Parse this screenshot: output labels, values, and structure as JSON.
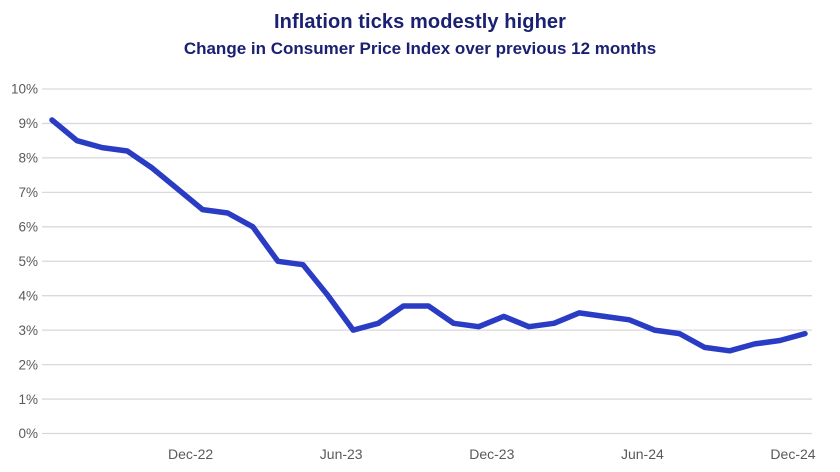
{
  "header": {
    "title": "Inflation ticks modestly higher",
    "subtitle": "Change in Consumer Price Index over previous 12 months"
  },
  "colors": {
    "title_text": "#1a2172",
    "line": "#2b3cc4",
    "grid": "#d9d9d9",
    "axis_text": "#5a5a5a",
    "background": "#ffffff"
  },
  "chart_data": {
    "type": "line",
    "title": "Inflation ticks modestly higher",
    "subtitle": "Change in Consumer Price Index over previous 12 months",
    "x": [
      "Jun-22",
      "Jul-22",
      "Aug-22",
      "Sep-22",
      "Oct-22",
      "Nov-22",
      "Dec-22",
      "Jan-23",
      "Feb-23",
      "Mar-23",
      "Apr-23",
      "May-23",
      "Jun-23",
      "Jul-23",
      "Aug-23",
      "Sep-23",
      "Oct-23",
      "Nov-23",
      "Dec-23",
      "Jan-24",
      "Feb-24",
      "Mar-24",
      "Apr-24",
      "May-24",
      "Jun-24",
      "Jul-24",
      "Aug-24",
      "Sep-24",
      "Oct-24",
      "Nov-24",
      "Dec-24"
    ],
    "values": [
      9.1,
      8.5,
      8.3,
      8.2,
      7.7,
      7.1,
      6.5,
      6.4,
      6.0,
      5.0,
      4.9,
      4.0,
      3.0,
      3.2,
      3.7,
      3.7,
      3.2,
      3.1,
      3.4,
      3.1,
      3.2,
      3.5,
      3.4,
      3.3,
      3.0,
      2.9,
      2.5,
      2.4,
      2.6,
      2.7,
      2.9
    ],
    "x_tick_labels": [
      "Dec-22",
      "Jun-23",
      "Dec-23",
      "Jun-24",
      "Dec-24"
    ],
    "y_tick_labels": [
      "0%",
      "1%",
      "2%",
      "3%",
      "4%",
      "5%",
      "6%",
      "7%",
      "8%",
      "9%",
      "10%"
    ],
    "ylim": [
      0,
      10
    ],
    "y_tick_step": 1,
    "xlabel": "",
    "ylabel": "",
    "grid": "horizontal",
    "legend": "none",
    "line_width": 5.5
  }
}
